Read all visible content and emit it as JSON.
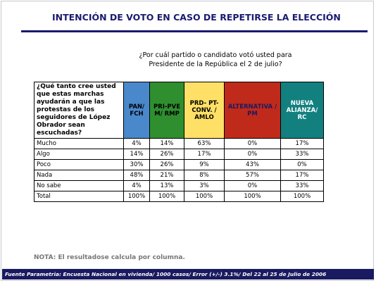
{
  "header": {
    "title": "INTENCIÓN DE VOTO EN CASO DE REPETIRSE LA ELECCIÓN",
    "question": "¿Por cuál partido o candidato votó usted para Presidente de la República el 2 de julio?"
  },
  "table": {
    "corner": "¿Qué tanto cree usted que estas marchas ayudarán a que las protestas de los seguidores de López Obrador sean escuchadas?",
    "columns": [
      {
        "label": "PAN/ FCH",
        "color": "#4a88cc",
        "text_color": "#000000"
      },
      {
        "label": "PRI-PVE M/ RMP",
        "color": "#2f8f2f",
        "text_color": "#000000"
      },
      {
        "label": "PRD- PT-CONV. / AMLO",
        "color": "#ffe066",
        "text_color": "#000000"
      },
      {
        "label": "ALTERNATIVA / PM",
        "color": "#c02a1a",
        "text_color": "#1a1a60"
      },
      {
        "label": "NUEVA ALIANZA/ RC",
        "color": "#138080",
        "text_color": "#ffffff"
      }
    ],
    "rows": [
      [
        "Mucho",
        "4%",
        "14%",
        "63%",
        "0%",
        "17%"
      ],
      [
        "Algo",
        "14%",
        "26%",
        "17%",
        "0%",
        "33%"
      ],
      [
        "Poco",
        "30%",
        "26%",
        "9%",
        "43%",
        "0%"
      ],
      [
        "Nada",
        "48%",
        "21%",
        "8%",
        "57%",
        "17%"
      ],
      [
        "No sabe",
        "4%",
        "13%",
        "3%",
        "0%",
        "33%"
      ],
      [
        "Total",
        "100%",
        "100%",
        "100%",
        "100%",
        "100%"
      ]
    ]
  },
  "note": "NOTA: El resultadose calcula  por columna.",
  "footer": "Fuente Parametria: Encuesta Nacional en vivienda/ 1000 casos/ Error (+/-) 3.1%/ Del 22 al 25 de Julio de 2006"
}
